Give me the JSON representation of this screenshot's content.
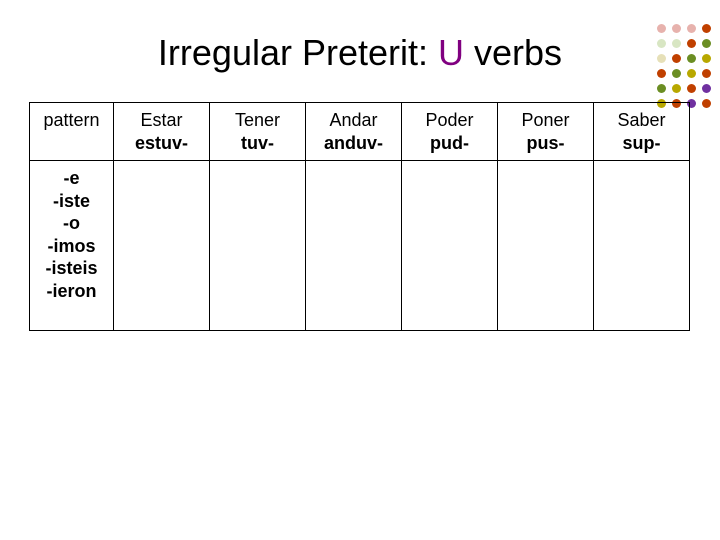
{
  "title": {
    "prefix": "Irregular Preterit: ",
    "u": "U",
    "suffix": " verbs",
    "fontsize": 36,
    "color": "#000000",
    "u_color": "#800080"
  },
  "dot_grid": {
    "rows": 6,
    "cols": 4,
    "dot_size": 9,
    "colors": [
      "#e7b2ad",
      "#e7b2ad",
      "#e7b2ad",
      "#c04000",
      "#d8e6c3",
      "#d8e6c3",
      "#c04000",
      "#6b8e23",
      "#e6e0b8",
      "#c04000",
      "#6b8e23",
      "#b8a800",
      "#c04000",
      "#6b8e23",
      "#b8a800",
      "#c04000",
      "#6b8e23",
      "#b8a800",
      "#c04000",
      "#7030a0",
      "#b8a800",
      "#c04000",
      "#7030a0",
      "#c04000"
    ]
  },
  "table": {
    "border_color": "#000000",
    "background_color": "#ffffff",
    "header_fontsize": 18,
    "cell_fontsize": 18,
    "columns": [
      {
        "key": "pattern",
        "header_top": "pattern",
        "header_bottom": ""
      },
      {
        "key": "estar",
        "header_top": "Estar",
        "header_bottom": "estuv-"
      },
      {
        "key": "tener",
        "header_top": "Tener",
        "header_bottom": "tuv-"
      },
      {
        "key": "andar",
        "header_top": "Andar",
        "header_bottom": "anduv-"
      },
      {
        "key": "poder",
        "header_top": "Poder",
        "header_bottom": "pud-"
      },
      {
        "key": "poner",
        "header_top": "Poner",
        "header_bottom": "pus-"
      },
      {
        "key": "saber",
        "header_top": "Saber",
        "header_bottom": "sup-"
      }
    ],
    "pattern_endings": [
      "-e",
      "-iste",
      "-o",
      "-imos",
      "-isteis",
      "-ieron"
    ]
  }
}
